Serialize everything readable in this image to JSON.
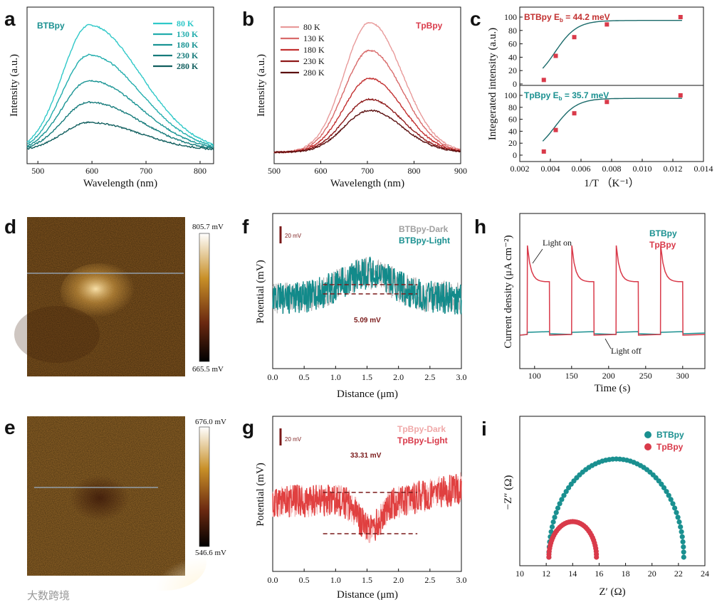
{
  "watermark": "大数跨境",
  "colors": {
    "teal": [
      "#2fc8c8",
      "#22adad",
      "#1a9494",
      "#167b7b",
      "#105e5e"
    ],
    "red": [
      "#e89a9a",
      "#d86a6a",
      "#c23030",
      "#8e1a1a",
      "#5a0f0f"
    ],
    "btb": "#1a9090",
    "tp": "#d93a4a",
    "dark": "#7a1a1a"
  },
  "chart_data": [
    {
      "panel": "a",
      "type": "line",
      "label": "BTBpy",
      "xlabel": "Wavelength (nm)",
      "ylabel": "Intensity (a.u.)",
      "xlim": [
        480,
        825
      ],
      "xticks": [
        "500",
        "600",
        "700",
        "800"
      ],
      "peak_nm": 595,
      "series": [
        {
          "name": "80 K",
          "peak": 0.93
        },
        {
          "name": "130 K",
          "peak": 0.71
        },
        {
          "name": "180 K",
          "peak": 0.52
        },
        {
          "name": "230 K",
          "peak": 0.36
        },
        {
          "name": "280 K",
          "peak": 0.21
        }
      ]
    },
    {
      "panel": "b",
      "type": "line",
      "label": "TpBpy",
      "xlabel": "Wavelength (nm)",
      "ylabel": "Intensity (a.u.)",
      "xlim": [
        500,
        900
      ],
      "xticks": [
        "500",
        "600",
        "700",
        "800",
        "900"
      ],
      "peak_nm": 705,
      "series": [
        {
          "name": "80 K",
          "peak": 0.93
        },
        {
          "name": "130 K",
          "peak": 0.73
        },
        {
          "name": "180 K",
          "peak": 0.53
        },
        {
          "name": "230 K",
          "peak": 0.38
        },
        {
          "name": "280 K",
          "peak": 0.3
        }
      ]
    },
    {
      "panel": "c",
      "type": "scatter",
      "xlabel": "1/T  （K⁻¹）",
      "ylabel": "Integerated intensity (a.u.)",
      "xlim": [
        0.002,
        0.014
      ],
      "xticks": [
        "0.002",
        "0.004",
        "0.006",
        "0.008",
        "0.010",
        "0.012",
        "0.014"
      ],
      "ylim": [
        0,
        105
      ],
      "yticks": [
        "0",
        "20",
        "40",
        "60",
        "80",
        "100"
      ],
      "top": {
        "label": "BTBpy E",
        "sub": "b",
        "value": " = 44.2 meV",
        "points": [
          [
            0.00357,
            6
          ],
          [
            0.00435,
            42
          ],
          [
            0.00556,
            70
          ],
          [
            0.00769,
            89
          ],
          [
            0.0125,
            100
          ]
        ]
      },
      "bottom": {
        "label": "TpBpy E",
        "sub": "b",
        "value": " = 35.7 meV",
        "points": [
          [
            0.00357,
            6
          ],
          [
            0.00435,
            42
          ],
          [
            0.00556,
            70
          ],
          [
            0.00769,
            89
          ],
          [
            0.0125,
            100
          ]
        ]
      },
      "fit_plateau": 95
    },
    {
      "panel": "d",
      "type": "heatmap",
      "colorbar": {
        "max": "805.7 mV",
        "min": "665.5 mV"
      }
    },
    {
      "panel": "e",
      "type": "heatmap",
      "colorbar": {
        "max": "676.0 mV",
        "min": "546.6 mV"
      }
    },
    {
      "panel": "f",
      "type": "line",
      "xlabel": "Distance (μm)",
      "ylabel": "Potential (mV)",
      "xlim": [
        0,
        3.0
      ],
      "xticks": [
        "0.0",
        "0.5",
        "1.0",
        "1.5",
        "2.0",
        "2.5",
        "3.0"
      ],
      "scalebar": "20 mV",
      "series": [
        {
          "name": "BTBpy-Dark"
        },
        {
          "name": "BTBpy-Light"
        }
      ],
      "annotation": "5.09 mV"
    },
    {
      "panel": "g",
      "type": "line",
      "xlabel": "Distance (μm)",
      "ylabel": "Potential (mV)",
      "xlim": [
        0,
        3.0
      ],
      "xticks": [
        "0.0",
        "0.5",
        "1.0",
        "1.5",
        "2.0",
        "2.5",
        "3.0"
      ],
      "scalebar": "20 mV",
      "series": [
        {
          "name": "TpBpy-Dark"
        },
        {
          "name": "TpBpy-Light"
        }
      ],
      "annotation": "33.31 mV"
    },
    {
      "panel": "h",
      "type": "line",
      "xlabel": "Time (s)",
      "ylabel": "Current density (μA cm⁻²)",
      "xlim": [
        80,
        330
      ],
      "xticks": [
        "100",
        "150",
        "200",
        "250",
        "300"
      ],
      "series": [
        {
          "name": "BTBpy"
        },
        {
          "name": "TpBpy"
        }
      ],
      "on_times": [
        90,
        150,
        210,
        270
      ],
      "off_times": [
        120,
        180,
        240,
        300
      ],
      "annotations": {
        "on": "Light on",
        "off": "Light off"
      }
    },
    {
      "panel": "i",
      "type": "scatter",
      "xlabel": "Z′ (Ω)",
      "ylabel": "−Z″ (Ω)",
      "xlim": [
        10,
        24
      ],
      "xticks": [
        "10",
        "12",
        "14",
        "16",
        "18",
        "20",
        "22",
        "24"
      ],
      "series": [
        {
          "name": "BTBpy",
          "x_start": 12.2,
          "x_end": 22.4
        },
        {
          "name": "TpBpy",
          "x_start": 12.2,
          "x_end": 15.8
        }
      ]
    }
  ]
}
